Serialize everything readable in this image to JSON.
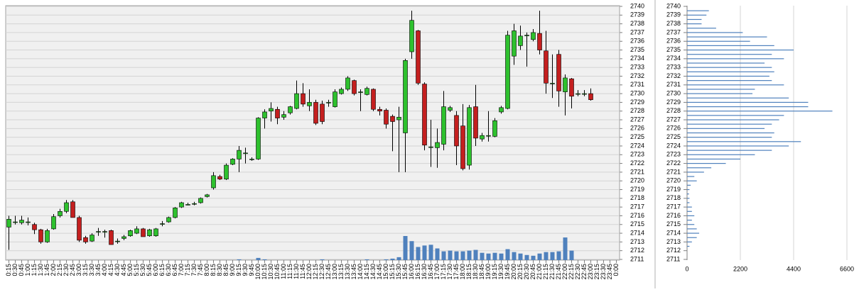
{
  "chart_data": [
    {
      "type": "candlestick",
      "categories": [
        "0:15",
        "0:30",
        "0:45",
        "1:00",
        "1:15",
        "1:30",
        "1:45",
        "2:00",
        "2:15",
        "2:30",
        "2:45",
        "3:00",
        "3:15",
        "3:30",
        "3:45",
        "4:00",
        "4:15",
        "4:30",
        "4:45",
        "5:00",
        "5:15",
        "5:30",
        "5:45",
        "6:00",
        "6:15",
        "6:30",
        "6:45",
        "7:00",
        "7:15",
        "7:30",
        "7:45",
        "8:00",
        "8:15",
        "8:30",
        "8:45",
        "9:00",
        "9:15",
        "9:30",
        "9:45",
        "10:00",
        "10:15",
        "10:30",
        "10:45",
        "11:00",
        "11:15",
        "11:30",
        "11:45",
        "12:00",
        "12:15",
        "12:30",
        "12:45",
        "13:00",
        "13:15",
        "13:30",
        "13:45",
        "14:00",
        "14:15",
        "14:30",
        "14:45",
        "15:00",
        "15:15",
        "15:30",
        "15:45",
        "16:00",
        "16:15",
        "16:30",
        "16:45",
        "17:00",
        "17:15",
        "17:30",
        "17:45",
        "18:00",
        "18:15",
        "18:30",
        "18:45",
        "19:00",
        "19:15",
        "19:30",
        "19:45",
        "20:00",
        "20:15",
        "20:30",
        "20:45",
        "21:00",
        "21:15",
        "21:30",
        "21:45",
        "22:00",
        "22:15",
        "22:30",
        "22:45",
        "23:00",
        "23:15",
        "23:30",
        "23:45",
        "0:00"
      ],
      "open": [
        2714.7,
        2715.3,
        2715.2,
        2715.3,
        2715,
        2714.4,
        2713,
        2714.5,
        2716,
        2716.5,
        2717.6,
        2715.8,
        2713.5,
        2713.1,
        2714.2,
        2714.2,
        2714.3,
        2713.1,
        2713.4,
        2713.7,
        2714,
        2714.5,
        2713.7,
        2713.7,
        2715.1,
        2715.3,
        2715.8,
        2717,
        2717.3,
        2717.4,
        2717.5,
        2718.2,
        2719.2,
        2720.5,
        2720.2,
        2721.9,
        2722.5,
        2723.2,
        2722.5,
        2722.5,
        2727.2,
        2728,
        2728.2,
        2727.3,
        2727.8,
        2728.3,
        2730,
        2728.6,
        2729,
        2728.8,
        2729,
        2728.5,
        2730,
        2730.5,
        2731.5,
        2730.2,
        2729.9,
        2730.5,
        2728.2,
        2728.1,
        2727.4,
        2727,
        2725.5,
        2734.8,
        2737.2,
        2731.1,
        2723.9,
        2723.8,
        2724.2,
        2728.1,
        2727.5,
        2726.3,
        2721.8,
        2728.5,
        2724.8,
        2725.2,
        2725.1,
        2727.9,
        2728.3,
        2734.3,
        2735.5,
        2736.7,
        2736.2,
        2736.9,
        2734.9,
        2731.2,
        2734.5,
        2730.2,
        2731.7,
        2730,
        2730,
        2730,
        null,
        null,
        null,
        null
      ],
      "high": [
        2716,
        2716,
        2716,
        2715.8,
        2715.2,
        2714.5,
        2714.5,
        2716.2,
        2716.8,
        2717.8,
        2717.8,
        2716,
        2713.7,
        2714,
        2714.6,
        2714.4,
        2714.4,
        2713.4,
        2713.8,
        2714.4,
        2714.8,
        2714.6,
        2714.5,
        2714.6,
        2715.4,
        2715.9,
        2717,
        2717.6,
        2717.5,
        2717.6,
        2718.1,
        2718.5,
        2721,
        2720.7,
        2722,
        2722.6,
        2724,
        2723.8,
        2722.7,
        2727.3,
        2728.2,
        2729,
        2728.5,
        2728,
        2728.6,
        2731.5,
        2731.2,
        2730.5,
        2729.3,
        2729.2,
        2729.3,
        2730.5,
        2730.7,
        2732,
        2731.6,
        2730.5,
        2730.8,
        2730.6,
        2728.5,
        2728.3,
        2727.6,
        2728.5,
        2734,
        2739.5,
        2737.3,
        2731.3,
        2727,
        2726,
        2730.3,
        2728.6,
        2728,
        2728.8,
        2728.7,
        2731,
        2725.5,
        2728,
        2727.2,
        2728.6,
        2737.2,
        2738,
        2737.8,
        2737,
        2737.4,
        2739.5,
        2737.2,
        2734.5,
        2735,
        2732.2,
        2731.8,
        2730.4,
        2730.4,
        2730.6,
        null,
        null,
        null,
        null
      ],
      "low": [
        2712.1,
        2715,
        2715,
        2714.9,
        2713.9,
        2712.8,
        2712.9,
        2714.4,
        2715.8,
        2716.3,
        2715.8,
        2713,
        2712.8,
        2713,
        2713.7,
        2713.5,
        2712.7,
        2712.8,
        2713.2,
        2713.6,
        2713.9,
        2713.6,
        2713.6,
        2713.6,
        2714.8,
        2715.2,
        2715.7,
        2716.9,
        2717.2,
        2717.2,
        2717.4,
        2718.1,
        2719,
        2720.1,
        2720.1,
        2721.8,
        2721,
        2722,
        2722.3,
        2722.4,
        2726,
        2726.8,
        2726.5,
        2727,
        2727.6,
        2728.2,
        2728.5,
        2728,
        2726.4,
        2726.5,
        2728.5,
        2728.4,
        2729.9,
        2730.3,
        2729.8,
        2728,
        2729.8,
        2728,
        2727.5,
        2726,
        2723.4,
        2721,
        2721,
        2734,
        2731,
        2723.5,
        2721.6,
        2721.5,
        2723.5,
        2727.9,
        2721.8,
        2721.2,
        2721.3,
        2724,
        2724.5,
        2724.5,
        2725,
        2727.7,
        2728.2,
        2733.3,
        2735,
        2733.1,
        2736,
        2734.5,
        2730,
        2729.5,
        2728.5,
        2727.5,
        2728.3,
        2729.7,
        2729.7,
        2729.2,
        null,
        null,
        null,
        null
      ],
      "close": [
        2715.6,
        2715.3,
        2715.5,
        2715.3,
        2714.4,
        2713,
        2714.3,
        2715.9,
        2716.5,
        2717.5,
        2715.8,
        2713.2,
        2713,
        2713.8,
        2714.2,
        2714.2,
        2712.7,
        2713.1,
        2713.6,
        2714.3,
        2714.5,
        2713.6,
        2714.4,
        2714.5,
        2715.1,
        2715.8,
        2716.9,
        2717.5,
        2717.3,
        2717.4,
        2718,
        2718.4,
        2720.6,
        2720.2,
        2721.8,
        2722.5,
        2723.5,
        2723.2,
        2722.5,
        2727.2,
        2727.9,
        2728.3,
        2727.2,
        2727.6,
        2728.5,
        2730,
        2728.8,
        2729,
        2726.6,
        2726.8,
        2729,
        2730.2,
        2730.5,
        2731.8,
        2730,
        2730.2,
        2730.6,
        2728.2,
        2728,
        2726.5,
        2726.8,
        2727.3,
        2733.8,
        2738.4,
        2731.2,
        2724.1,
        2723.9,
        2724.4,
        2728.5,
        2728.4,
        2724,
        2721.4,
        2728.4,
        2724.9,
        2725.2,
        2725.2,
        2726.9,
        2728.4,
        2736.7,
        2737.2,
        2736.6,
        2736.7,
        2737,
        2735,
        2731.2,
        2731.2,
        2730.3,
        2731.8,
        2729.7,
        2730,
        2730,
        2729.3,
        null,
        null,
        null,
        null
      ],
      "volume": [
        0,
        0,
        0,
        0,
        0,
        0,
        0,
        0,
        0,
        0,
        0,
        0,
        0,
        0,
        0,
        0,
        0,
        0,
        0,
        0,
        0,
        0,
        0,
        0,
        0,
        0,
        0,
        0,
        0,
        0,
        0,
        0,
        0,
        0,
        0,
        0,
        1,
        0,
        0,
        3,
        1,
        0,
        0,
        0,
        0,
        0,
        0,
        0,
        0,
        1,
        0,
        0,
        0,
        0,
        0,
        0,
        1,
        0,
        0,
        1,
        2,
        4,
        33,
        26,
        18,
        20,
        21,
        16,
        12,
        13,
        12,
        12,
        13,
        14,
        10,
        9,
        10,
        9,
        15,
        11,
        9,
        7,
        6,
        9,
        11,
        11,
        12,
        31,
        13,
        0,
        0,
        0,
        0,
        0,
        0,
        0
      ],
      "up_color": "#2ec12e",
      "down_color": "#c41f1f",
      "volume_color": "#4f81bd",
      "ylim": [
        2711,
        2740
      ],
      "yticks": [
        2711,
        2712,
        2713,
        2714,
        2715,
        2716,
        2717,
        2718,
        2719,
        2720,
        2721,
        2722,
        2723,
        2724,
        2725,
        2726,
        2727,
        2728,
        2729,
        2730,
        2731,
        2732,
        2733,
        2734,
        2735,
        2736,
        2737,
        2738,
        2739,
        2740
      ],
      "grid": true
    },
    {
      "type": "bar",
      "orientation": "horizontal",
      "categories": [
        2712.5,
        2713,
        2713.5,
        2714,
        2714.5,
        2715,
        2715.5,
        2716,
        2716.5,
        2717,
        2717.5,
        2718,
        2718.5,
        2719,
        2719.5,
        2720,
        2720.5,
        2721,
        2721.5,
        2722,
        2722.5,
        2723,
        2723.5,
        2724,
        2724.5,
        2725,
        2725.5,
        2726,
        2726.5,
        2727,
        2727.5,
        2728,
        2728.5,
        2729,
        2729.5,
        2730,
        2730.5,
        2731,
        2731.5,
        2732,
        2732.5,
        2733,
        2733.5,
        2734,
        2734.5,
        2735,
        2735.5,
        2736,
        2736.5,
        2737,
        2737.5,
        2738,
        2738.5,
        2739,
        2739.5
      ],
      "values": [
        100,
        200,
        400,
        500,
        400,
        300,
        200,
        300,
        200,
        200,
        100,
        100,
        80,
        100,
        150,
        400,
        300,
        700,
        1000,
        1600,
        2200,
        2800,
        3500,
        4200,
        4700,
        3500,
        3600,
        3200,
        3500,
        3800,
        4000,
        6000,
        5000,
        5000,
        4200,
        2700,
        2800,
        4000,
        3500,
        3400,
        3600,
        3500,
        3200,
        4000,
        3500,
        4400,
        3600,
        2600,
        3300,
        2300,
        1200,
        600,
        600,
        800,
        900
      ],
      "color": "#4f81bd",
      "xlim": [
        0,
        6600
      ],
      "xticks": [
        0,
        2200,
        4400,
        6600
      ],
      "ylim": [
        2711,
        2740
      ],
      "yticks": [
        2711,
        2712,
        2713,
        2714,
        2715,
        2716,
        2717,
        2718,
        2719,
        2720,
        2721,
        2722,
        2723,
        2724,
        2725,
        2726,
        2727,
        2728,
        2729,
        2730,
        2731,
        2732,
        2733,
        2734,
        2735,
        2736,
        2737,
        2738,
        2739,
        2740
      ],
      "grid": true
    }
  ]
}
